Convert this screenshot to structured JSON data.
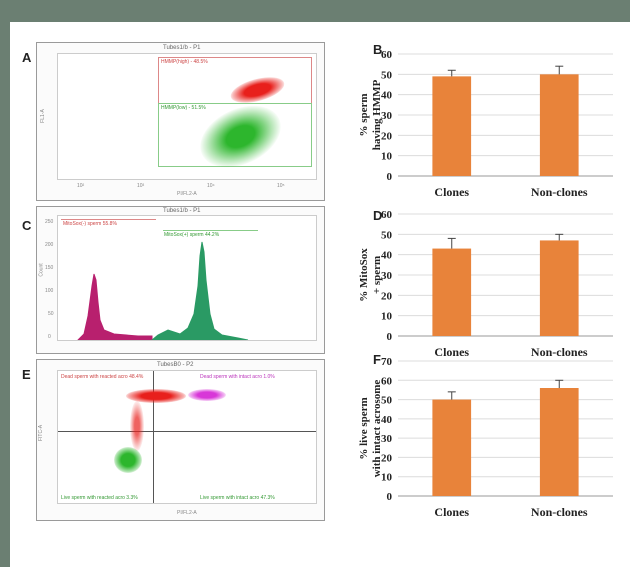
{
  "panel_letters": {
    "A": "A",
    "B": "B",
    "C": "C",
    "D": "D",
    "E": "E",
    "F": "F"
  },
  "flow_plots": {
    "A": {
      "title": "Tubes1/b - P1",
      "gate_top": "HMMP(high) - 48.5%",
      "gate_bottom": "HMMP(low) - 51.5%",
      "x_axis": "PI/FL2-A",
      "y_axis": "FL1-A",
      "x_ticks": [
        "10²",
        "10³",
        "10⁴",
        "10⁵"
      ]
    },
    "C": {
      "title": "Tubes1/b - P1",
      "gate_left": "MitoSox(-) sperm 55.8%",
      "gate_right": "MitoSox(+) sperm 44.2%",
      "x_axis": "FL2-A",
      "y_axis": "Count",
      "y_ticks": [
        "0",
        "50",
        "100",
        "150",
        "200",
        "250"
      ]
    },
    "E": {
      "title": "TubesB0 - P2",
      "q1": "Dead sperm with reacted acro 48.4%",
      "q2": "Dead sperm with intact acro 1.0%",
      "q3": "Live sperm with reacted acro 3.3%",
      "q4": "Live sperm with intact acro 47.3%",
      "x_axis": "PI/FL2-A",
      "y_axis": "FITC-A"
    }
  },
  "colors": {
    "bar": "#e8833a",
    "red": "#e8201c",
    "green": "#2db62d",
    "magenta": "#b8206e",
    "teal": "#2a9a64",
    "purple": "#d837d8"
  },
  "chart_data": [
    {
      "type": "bar",
      "panel": "B",
      "categories": [
        "Clones",
        "Non-clones"
      ],
      "values": [
        49,
        50
      ],
      "errors": [
        3,
        4
      ],
      "ylabel": "% sperm having HMMP",
      "ylim": [
        0,
        60
      ],
      "yticks": [
        0,
        10,
        20,
        30,
        40,
        50,
        60
      ]
    },
    {
      "type": "bar",
      "panel": "D",
      "categories": [
        "Clones",
        "Non-clones"
      ],
      "values": [
        43,
        47
      ],
      "errors": [
        5,
        3
      ],
      "ylabel": "% MitoSox + sperm",
      "ylim": [
        0,
        60
      ],
      "yticks": [
        0,
        10,
        20,
        30,
        40,
        50,
        60
      ]
    },
    {
      "type": "bar",
      "panel": "F",
      "categories": [
        "Clones",
        "Non-clones"
      ],
      "values": [
        50,
        56
      ],
      "errors": [
        4,
        4
      ],
      "ylabel": "% live sperm with intact acrosome",
      "ylim": [
        0,
        70
      ],
      "yticks": [
        0,
        10,
        20,
        30,
        40,
        50,
        60,
        70
      ]
    }
  ]
}
